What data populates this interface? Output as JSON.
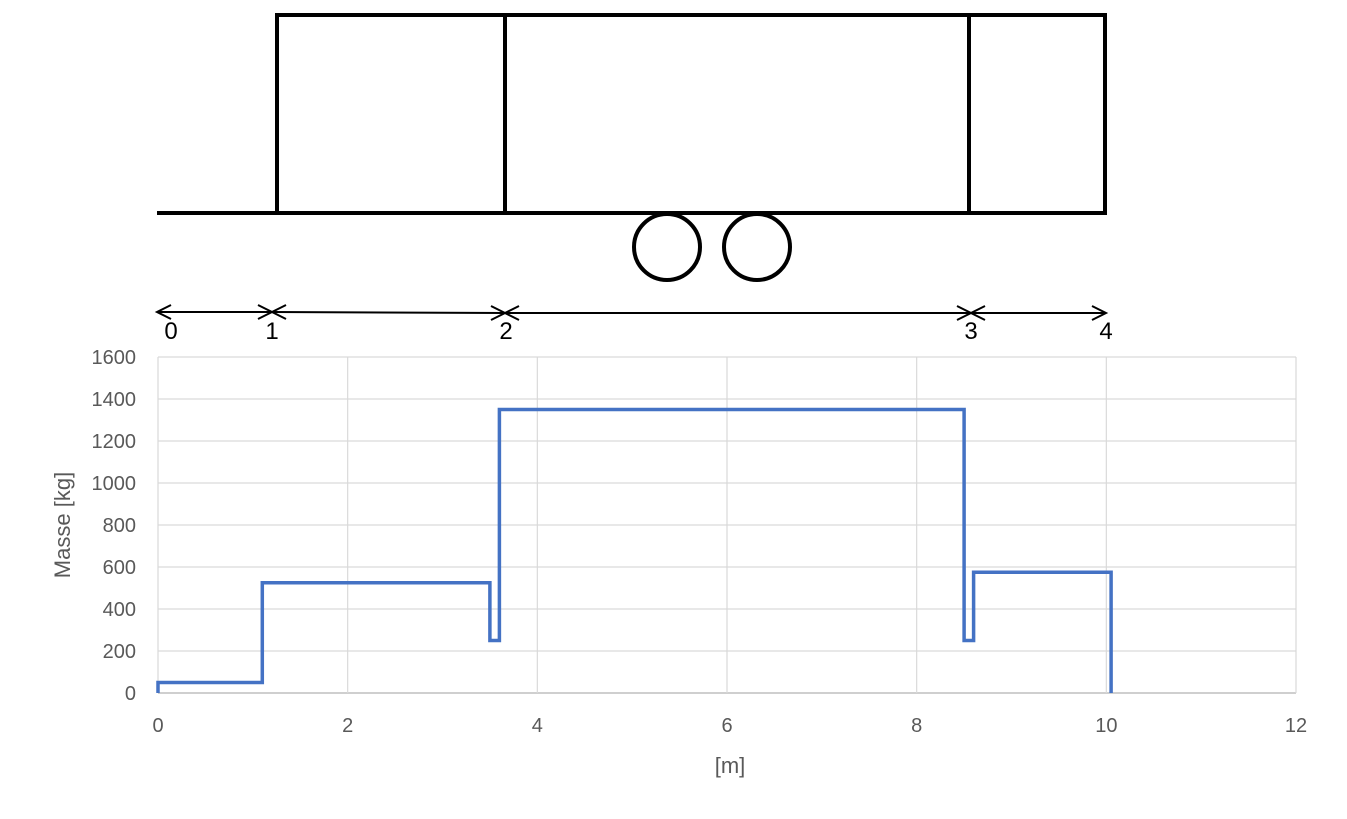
{
  "diagram": {
    "segment_labels": [
      "0",
      "1",
      "2",
      "3",
      "4"
    ]
  },
  "chart_data": {
    "type": "line",
    "title": "",
    "xlabel": "[m]",
    "ylabel": "Masse [kg]",
    "xlim": [
      0,
      12
    ],
    "ylim": [
      0,
      1600
    ],
    "xticks": [
      0,
      2,
      4,
      6,
      8,
      10,
      12
    ],
    "yticks": [
      0,
      200,
      400,
      600,
      800,
      1000,
      1200,
      1400,
      1600
    ],
    "grid": true,
    "legend": "none",
    "series": [
      {
        "color": "#4472C4",
        "x": [
          0,
          0,
          1.1,
          1.1,
          3.5,
          3.5,
          3.6,
          3.6,
          8.5,
          8.5,
          8.6,
          8.6,
          10.05,
          10.05
        ],
        "y": [
          0,
          50,
          50,
          525,
          525,
          250,
          250,
          1350,
          1350,
          250,
          250,
          575,
          575,
          0
        ]
      }
    ]
  }
}
